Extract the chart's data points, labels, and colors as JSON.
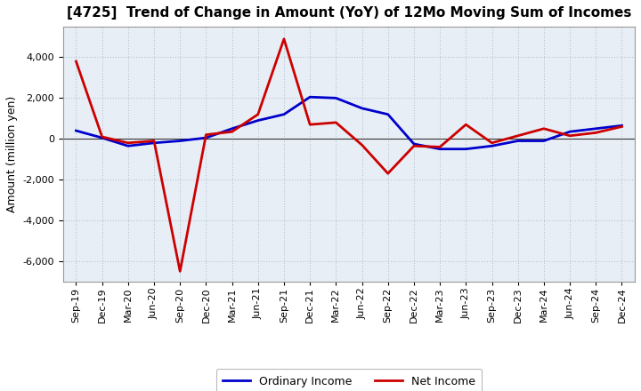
{
  "title": "[4725]  Trend of Change in Amount (YoY) of 12Mo Moving Sum of Incomes",
  "ylabel": "Amount (million yen)",
  "background_color": "#FFFFFF",
  "plot_bg_color": "#E8EEF5",
  "grid_color": "#AABBCC",
  "x_labels": [
    "Sep-19",
    "Dec-19",
    "Mar-20",
    "Jun-20",
    "Sep-20",
    "Dec-20",
    "Mar-21",
    "Jun-21",
    "Sep-21",
    "Dec-21",
    "Mar-22",
    "Jun-22",
    "Sep-22",
    "Dec-22",
    "Mar-23",
    "Jun-23",
    "Sep-23",
    "Dec-23",
    "Mar-24",
    "Jun-24",
    "Sep-24",
    "Dec-24"
  ],
  "ordinary_income": [
    400,
    50,
    -350,
    -200,
    -100,
    50,
    500,
    900,
    1200,
    2050,
    2000,
    1500,
    1200,
    -250,
    -500,
    -500,
    -350,
    -100,
    -100,
    350,
    500,
    650
  ],
  "net_income": [
    3800,
    100,
    -200,
    -100,
    -6500,
    200,
    350,
    1200,
    4900,
    700,
    800,
    -300,
    -1700,
    -350,
    -400,
    700,
    -200,
    150,
    500,
    150,
    300,
    600
  ],
  "ordinary_color": "#0000CC",
  "net_color": "#CC0000",
  "ylim": [
    -7000,
    5500
  ],
  "yticks": [
    -6000,
    -4000,
    -2000,
    0,
    2000,
    4000
  ],
  "line_width": 2.0,
  "legend_ordinary": "Ordinary Income",
  "legend_net": "Net Income",
  "title_fontsize": 11,
  "ylabel_fontsize": 9,
  "tick_fontsize": 8
}
